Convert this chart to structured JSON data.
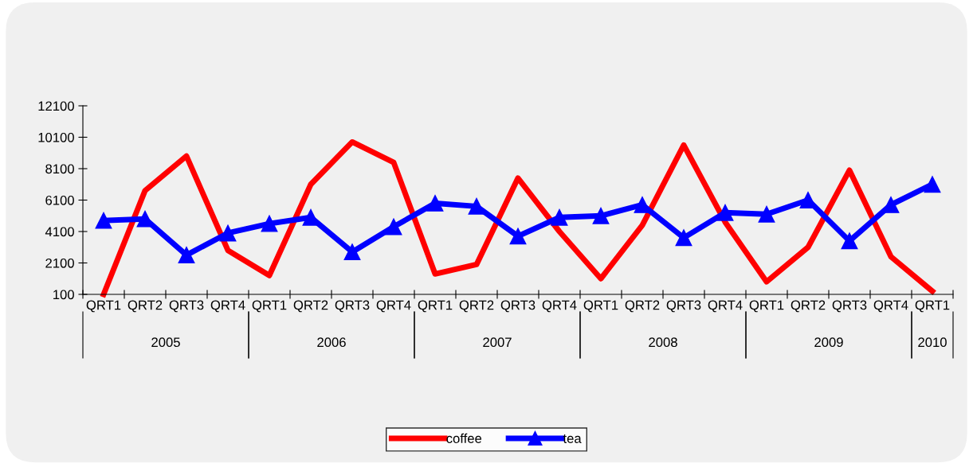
{
  "chart_data": {
    "type": "line",
    "categories": [
      "QRT1",
      "QRT2",
      "QRT3",
      "QRT4",
      "QRT1",
      "QRT2",
      "QRT3",
      "QRT4",
      "QRT1",
      "QRT2",
      "QRT3",
      "QRT4",
      "QRT1",
      "QRT2",
      "QRT3",
      "QRT4",
      "QRT1",
      "QRT2",
      "QRT3",
      "QRT4",
      "QRT1"
    ],
    "series": [
      {
        "name": "coffee",
        "color": "#ff0000",
        "marker": "none",
        "values": [
          100,
          6700,
          8900,
          2900,
          1300,
          7100,
          9800,
          8500,
          1400,
          2000,
          7500,
          4100,
          1100,
          4500,
          9600,
          4700,
          900,
          3100,
          8000,
          2500,
          300
        ]
      },
      {
        "name": "tea",
        "color": "#0000ff",
        "marker": "triangle",
        "values": [
          4800,
          4900,
          2600,
          4000,
          4600,
          5000,
          2800,
          4400,
          5900,
          5700,
          3800,
          5000,
          5100,
          5800,
          3700,
          5300,
          5200,
          6100,
          3500,
          5800,
          7100
        ]
      }
    ],
    "ylim": [
      100,
      12100
    ],
    "yticks": [
      100,
      2100,
      4100,
      6100,
      8100,
      10100,
      12100
    ],
    "annotations": [
      "2005",
      "2006",
      "2007",
      "2008",
      "2009",
      "2010"
    ],
    "grid": false,
    "legend": "bottom",
    "line_style": "solid"
  }
}
